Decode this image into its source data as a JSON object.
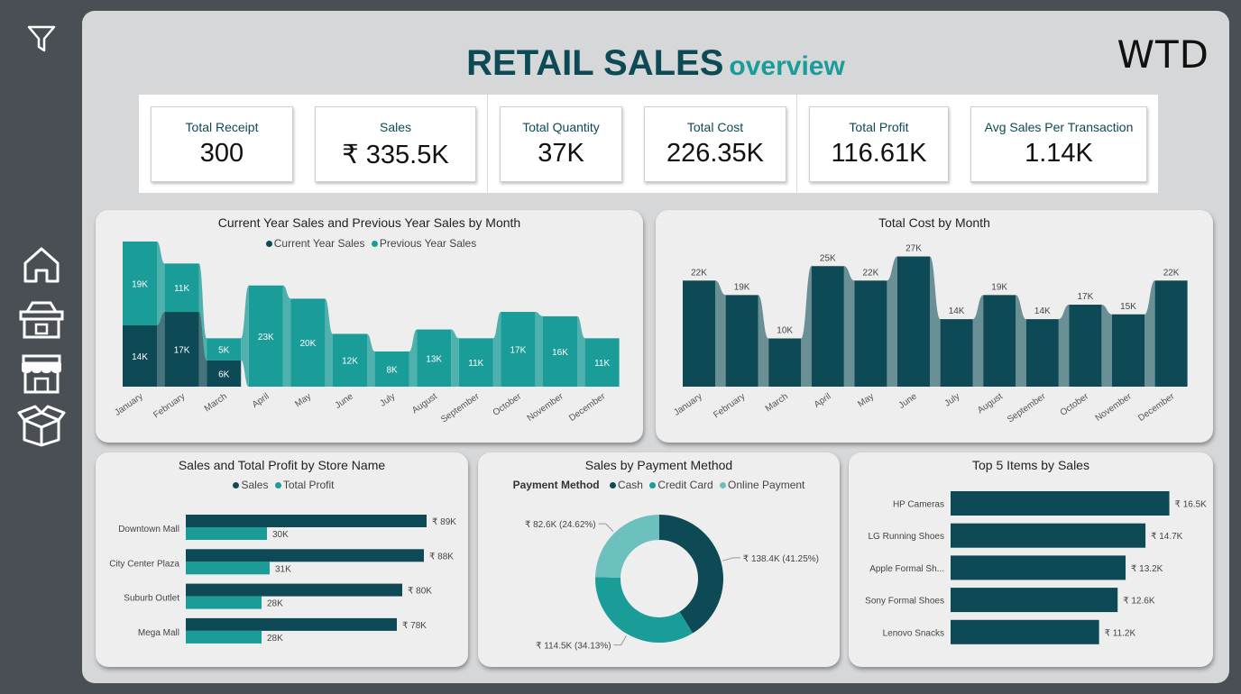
{
  "brand": "WTD",
  "title": {
    "main": "RETAIL SALES",
    "sub": "overview"
  },
  "sidebar": {
    "items": [
      {
        "icon": "filter-icon"
      },
      {
        "icon": "home-icon"
      },
      {
        "icon": "store-basket-icon"
      },
      {
        "icon": "storefront-icon"
      },
      {
        "icon": "box-icon"
      }
    ]
  },
  "kpis": [
    {
      "label": "Total Receipt",
      "value": "300"
    },
    {
      "label": "Sales",
      "value": "₹ 335.5K"
    },
    {
      "label": "Total Quantity",
      "value": "37K"
    },
    {
      "label": "Total Cost",
      "value": "226.35K"
    },
    {
      "label": "Total Profit",
      "value": "116.61K"
    },
    {
      "label": "Avg Sales Per Transaction",
      "value": "1.14K"
    }
  ],
  "colors": {
    "dark": "#0d4a55",
    "teal": "#1a9c98",
    "light": "#6cc0bd"
  },
  "chart_data": [
    {
      "id": "cy_py",
      "type": "bar",
      "title": "Current Year Sales and Previous Year Sales by Month",
      "categories": [
        "January",
        "February",
        "March",
        "April",
        "May",
        "June",
        "July",
        "August",
        "September",
        "October",
        "November",
        "December"
      ],
      "series": [
        {
          "name": "Current Year Sales",
          "values": [
            14,
            17,
            6,
            null,
            null,
            null,
            null,
            null,
            null,
            null,
            null,
            null
          ],
          "labels": [
            "14K",
            "17K",
            "6K",
            "",
            "",
            "",
            "",
            "",
            "",
            "",
            "",
            ""
          ]
        },
        {
          "name": "Previous Year Sales",
          "values": [
            19,
            11,
            5,
            23,
            20,
            12,
            8,
            13,
            11,
            17,
            16,
            11
          ],
          "labels": [
            "19K",
            "11K",
            "5K",
            "23K",
            "20K",
            "12K",
            "8K",
            "13K",
            "11K",
            "17K",
            "16K",
            "11K"
          ]
        }
      ],
      "stacked": true
    },
    {
      "id": "cost",
      "type": "bar",
      "title": "Total Cost by Month",
      "categories": [
        "January",
        "February",
        "March",
        "April",
        "May",
        "June",
        "July",
        "August",
        "September",
        "October",
        "November",
        "December"
      ],
      "values": [
        22,
        19,
        10,
        25,
        22,
        27,
        14,
        19,
        14,
        17,
        15,
        22
      ],
      "labels": [
        "22K",
        "19K",
        "10K",
        "25K",
        "22K",
        "27K",
        "14K",
        "19K",
        "14K",
        "17K",
        "15K",
        "22K"
      ]
    },
    {
      "id": "store",
      "type": "bar",
      "title": "Sales and Total Profit by Store Name",
      "categories": [
        "Downtown Mall",
        "City Center Plaza",
        "Suburb Outlet",
        "Mega Mall"
      ],
      "series": [
        {
          "name": "Sales",
          "values": [
            89,
            88,
            80,
            78
          ],
          "labels": [
            "₹ 89K",
            "₹ 88K",
            "₹ 80K",
            "₹ 78K"
          ]
        },
        {
          "name": "Total Profit",
          "values": [
            30,
            31,
            28,
            28
          ],
          "labels": [
            "30K",
            "31K",
            "28K",
            "28K"
          ]
        }
      ]
    },
    {
      "id": "payment",
      "type": "pie",
      "title": "Sales by Payment Method",
      "legend_title": "Payment Method",
      "categories": [
        "Cash",
        "Credit Card",
        "Online Payment"
      ],
      "values": [
        41.25,
        34.13,
        24.62
      ],
      "labels": [
        "₹ 138.4K (41.25%)",
        "₹ 114.5K (34.13%)",
        "₹ 82.6K (24.62%)"
      ]
    },
    {
      "id": "top5",
      "type": "bar",
      "title": "Top 5 Items by Sales",
      "categories": [
        "HP Cameras",
        "LG Running Shoes",
        "Apple Formal Sh...",
        "Sony Formal Shoes",
        "Lenovo Snacks"
      ],
      "values": [
        16.5,
        14.7,
        13.2,
        12.6,
        11.2
      ],
      "labels": [
        "₹ 16.5K",
        "₹ 14.7K",
        "₹ 13.2K",
        "₹ 12.6K",
        "₹ 11.2K"
      ]
    }
  ]
}
